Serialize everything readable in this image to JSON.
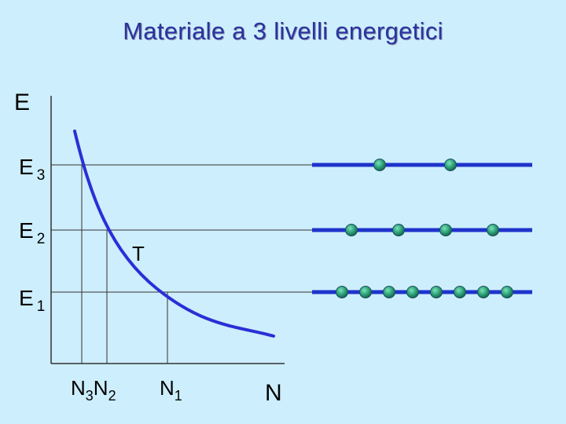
{
  "title": "Materiale a 3 livelli energetici",
  "axes": {
    "y_label": "E",
    "x_label": "N"
  },
  "levels": [
    {
      "label": "E",
      "sub": "3",
      "particles": 2
    },
    {
      "label": "E",
      "sub": "2",
      "particles": 4
    },
    {
      "label": "E",
      "sub": "1",
      "particles": 8
    }
  ],
  "curve_label": "T",
  "populations": [
    {
      "label": "N",
      "sub": "3"
    },
    {
      "label": "N",
      "sub": "2"
    },
    {
      "label": "N",
      "sub": "1"
    }
  ],
  "colors": {
    "background": "#cdeefc",
    "title": "#2a33a0",
    "curve": "#2a2fd6",
    "level_line": "#1f33cc",
    "particle": "#2fa57a"
  }
}
